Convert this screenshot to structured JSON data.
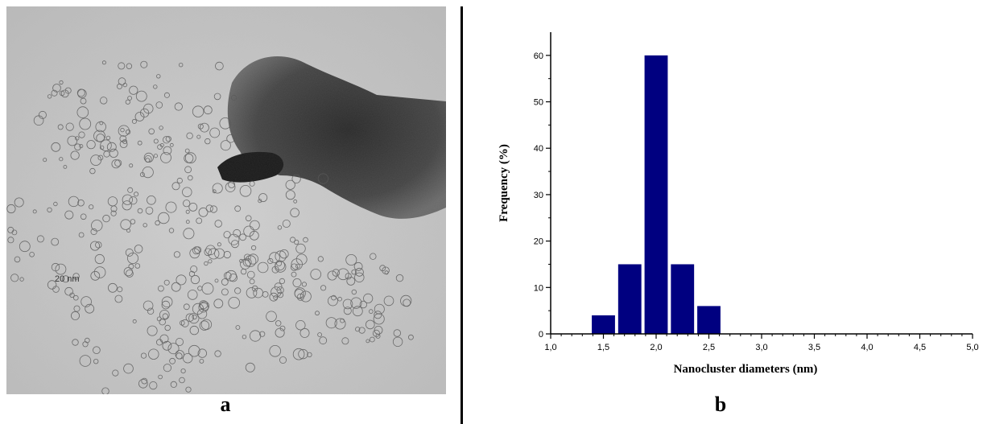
{
  "panels": {
    "a_label": "a",
    "b_label": "b"
  },
  "tem_image": {
    "scale_bar_label": "20 nm"
  },
  "chart_data": {
    "type": "bar",
    "title": "",
    "xlabel": "Nanocluster diameters (nm)",
    "ylabel": "Frequency (%)",
    "xlim": [
      1.0,
      5.0
    ],
    "ylim": [
      0,
      65
    ],
    "x_ticks": [
      1.0,
      1.5,
      2.0,
      2.5,
      3.0,
      3.5,
      4.0,
      4.5,
      5.0
    ],
    "x_tick_labels": [
      "1,0",
      "1,5",
      "2,0",
      "2,5",
      "3,0",
      "3,5",
      "4,0",
      "4,5",
      "5,0"
    ],
    "y_ticks": [
      0,
      10,
      20,
      30,
      40,
      50,
      60
    ],
    "y_tick_labels": [
      "0",
      "10",
      "20",
      "30",
      "40",
      "50",
      "60"
    ],
    "bar_width": 0.22,
    "x": [
      1.5,
      1.75,
      2.0,
      2.25,
      2.5
    ],
    "values": [
      4,
      15,
      60,
      15,
      6
    ],
    "bar_color": "#000080",
    "grid": false
  }
}
